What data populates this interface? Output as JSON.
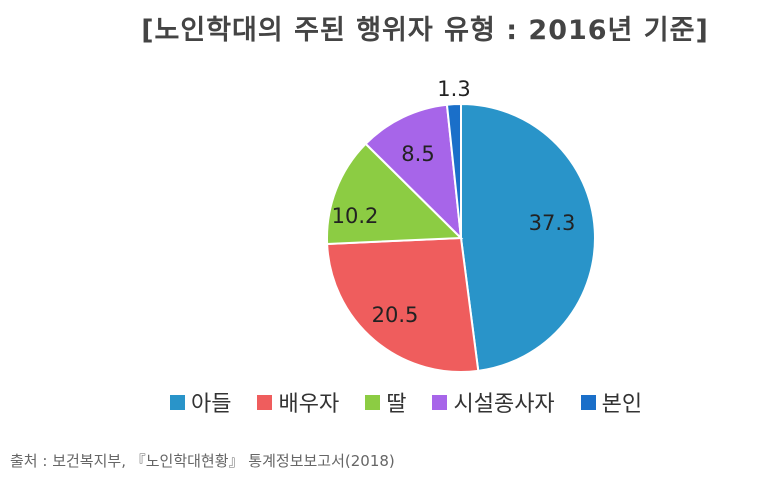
{
  "chart_data": {
    "type": "pie",
    "title": "[노인학대의 주된 행위자 유형 : 2016년 기준]",
    "categories": [
      "아들",
      "배우자",
      "딸",
      "시설종사자",
      "본인"
    ],
    "values": [
      37.3,
      20.5,
      10.2,
      8.5,
      1.3
    ],
    "data_labels": [
      "37.3",
      "20.5",
      "10.2",
      "8.5",
      "1.3"
    ],
    "colors": [
      "#2994c9",
      "#ef5d5d",
      "#8ccc43",
      "#a765e9",
      "#1a6fc9"
    ],
    "start_angle_deg": 0,
    "direction": "clockwise",
    "legend_position": "bottom"
  },
  "source": "출처 : 보건복지부, 『노인학대현황』 통계정보보고서(2018)"
}
